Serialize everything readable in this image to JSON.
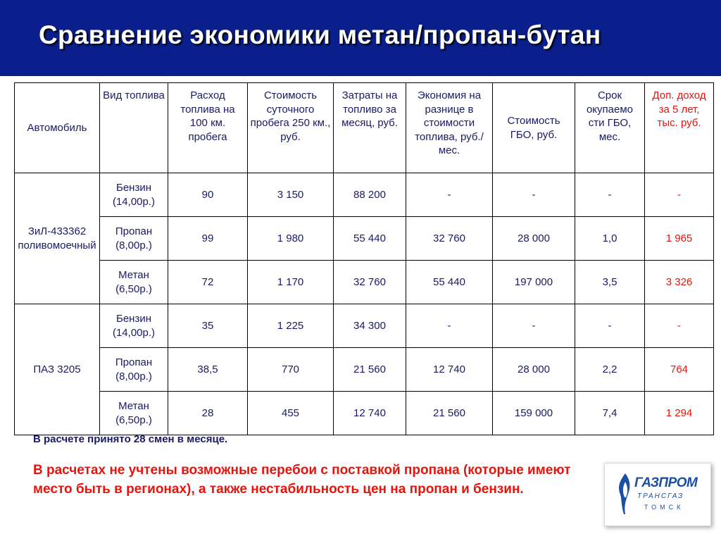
{
  "title": "Сравнение экономики метан/пропан-бутан",
  "colors": {
    "header_bg": "#0a1f8c",
    "title": "#ffffff",
    "body_text": "#1a1a66",
    "accent_red": "#e8140c",
    "logo_blue": "#1b4fa3"
  },
  "table": {
    "headers": [
      "Автомобиль",
      "Вид топлива",
      "Расход топлива на 100 км. пробега",
      "Стоимость суточного пробега 250 км., руб.",
      "Затраты на топливо за месяц, руб.",
      "Экономия на разнице в стоимости топлива, руб./мес.",
      "Стоимость ГБО, руб.",
      "Срок окупаемо сти ГБО, мес.",
      "Доп. доход за 5 лет, тыс. руб."
    ],
    "groups": [
      {
        "vehicle": "ЗиЛ-433362 поливомоечный",
        "rows": [
          {
            "fuel": "Бензин (14,00р.)",
            "consumption": "90",
            "daily_cost": "3 150",
            "monthly_cost": "88 200",
            "savings": "-",
            "gbo_cost": "-",
            "payback": "-",
            "extra_income": "-"
          },
          {
            "fuel": "Пропан (8,00р.)",
            "consumption": "99",
            "daily_cost": "1 980",
            "monthly_cost": "55 440",
            "savings": "32 760",
            "gbo_cost": "28 000",
            "payback": "1,0",
            "extra_income": "1 965"
          },
          {
            "fuel": "Метан (6,50р.)",
            "consumption": "72",
            "daily_cost": "1 170",
            "monthly_cost": "32 760",
            "savings": "55 440",
            "gbo_cost": "197 000",
            "payback": "3,5",
            "extra_income": "3 326"
          }
        ]
      },
      {
        "vehicle": "ПАЗ 3205",
        "rows": [
          {
            "fuel": "Бензин (14,00р.)",
            "consumption": "35",
            "daily_cost": "1 225",
            "monthly_cost": "34 300",
            "savings": "-",
            "gbo_cost": "-",
            "payback": "-",
            "extra_income": "-"
          },
          {
            "fuel": "Пропан (8,00р.)",
            "consumption": "38,5",
            "daily_cost": "770",
            "monthly_cost": "21 560",
            "savings": "12 740",
            "gbo_cost": "28 000",
            "payback": "2,2",
            "extra_income": "764"
          },
          {
            "fuel": "Метан (6,50р.)",
            "consumption": "28",
            "daily_cost": "455",
            "monthly_cost": "12 740",
            "savings": "21 560",
            "gbo_cost": "159 000",
            "payback": "7,4",
            "extra_income": "1 294"
          }
        ]
      }
    ]
  },
  "notes": {
    "shifts": "В расчете принято 28 смен в месяце.",
    "warning": "В расчетах не учтены возможные перебои с поставкой пропана (которые имеют место быть в регионах), а также нестабильность цен на пропан и бензин."
  },
  "logo": {
    "name": "ГАЗПРОМ",
    "subsidiary": "ТРАНСГАЗ",
    "city": "ТОМСК",
    "icon": "gas-flame-icon"
  }
}
